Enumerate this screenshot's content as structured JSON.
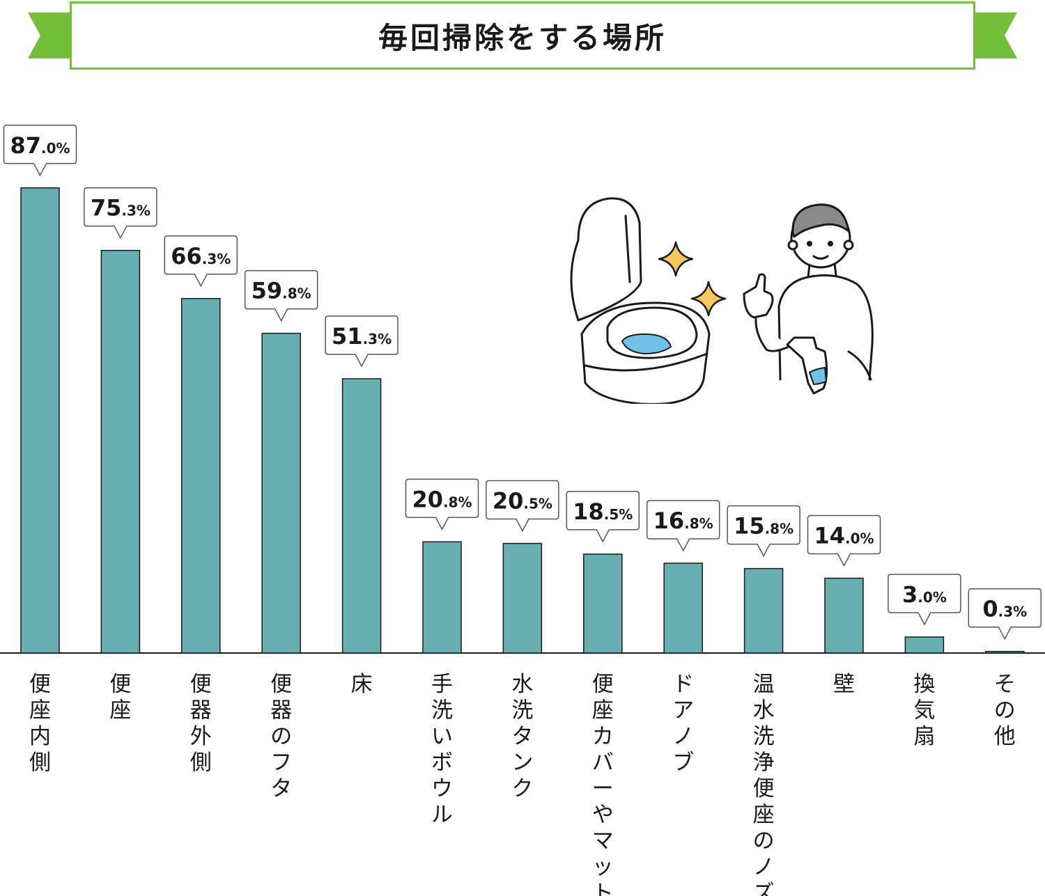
{
  "title": "毎回掃除をする場所",
  "colors": {
    "bar": "#67AFB1",
    "banner": "#74BE3A",
    "outline": "#1a1a1a"
  },
  "chart_data": {
    "type": "bar",
    "title": "毎回掃除をする場所",
    "xlabel": "",
    "ylabel": "",
    "unit": "%",
    "ylim": [
      0,
      100
    ],
    "grid": false,
    "categories": [
      "便座内側",
      "便座",
      "便器外側",
      "便器のフタ",
      "床",
      "手洗いボウル",
      "水洗タンク",
      "便座カバーやマット",
      "ドアノブ",
      "温水洗浄便座のノズル",
      "壁",
      "換気扇",
      "その他"
    ],
    "values": [
      87.0,
      75.3,
      66.3,
      59.8,
      51.3,
      20.8,
      20.5,
      18.5,
      16.8,
      15.8,
      14.0,
      3.0,
      0.3
    ]
  },
  "illustration": {
    "icons": [
      "toilet-icon",
      "sparkle-icon",
      "person-with-spray-icon"
    ]
  }
}
